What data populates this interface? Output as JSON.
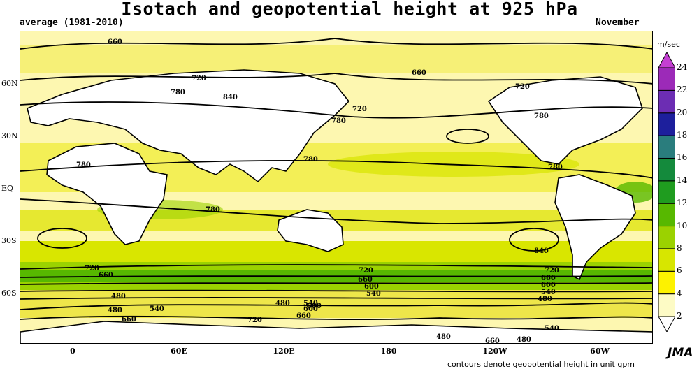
{
  "header": {
    "title": "Isotach and geopotential height at 925 hPa",
    "period": "average (1981-2010)",
    "month": "November"
  },
  "axes": {
    "lat_ticks": [
      "60N",
      "30N",
      "EQ",
      "30S",
      "60S"
    ],
    "lon_ticks": [
      "0",
      "60E",
      "120E",
      "180",
      "120W",
      "60W"
    ]
  },
  "colorbar": {
    "unit": "m/sec",
    "levels": [
      "2",
      "4",
      "6",
      "8",
      "10",
      "12",
      "14",
      "16",
      "18",
      "20",
      "22",
      "24"
    ],
    "colors": [
      "#ffffff",
      "#fdfbc5",
      "#fdf200",
      "#d7e600",
      "#9bd200",
      "#57b800",
      "#1f9c1f",
      "#148a3c",
      "#2a7d7d",
      "#1d1f9c",
      "#6c2db3",
      "#9c2ab8",
      "#c43fd2"
    ]
  },
  "contour_labels": [
    "660",
    "720",
    "780",
    "840",
    "660",
    "720",
    "720",
    "780",
    "780",
    "780",
    "780",
    "780",
    "780",
    "840",
    "720",
    "660",
    "720",
    "660",
    "600",
    "540",
    "480",
    "720",
    "660",
    "600",
    "540",
    "480",
    "480",
    "540",
    "600",
    "660",
    "480",
    "540",
    "600",
    "660",
    "720",
    "480",
    "540",
    "480",
    "660"
  ],
  "footer": {
    "logo": "JMA",
    "note": "contours denote geopotential height in unit gpm"
  }
}
